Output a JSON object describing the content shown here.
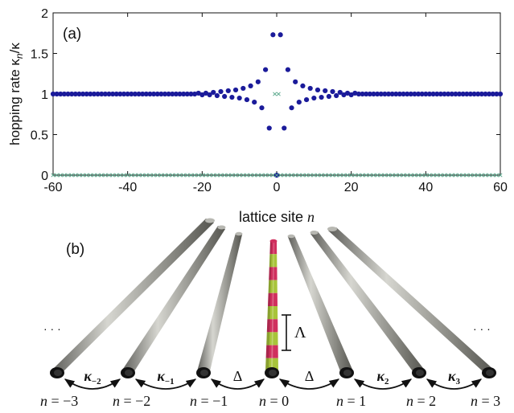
{
  "panel_a": {
    "label": "(a)",
    "chart_data": {
      "type": "scatter",
      "xlabel_text": "lattice site ",
      "xlabel_var": "n",
      "ylabel_main": "hopping rate  κ",
      "ylabel_sub": "n",
      "ylabel_tail": "/κ",
      "xlim": [
        -60,
        60
      ],
      "ylim": [
        0,
        2
      ],
      "x_ticks": [
        "-60",
        "-40",
        "-20",
        "0",
        "20",
        "40",
        "60"
      ],
      "y_ticks": [
        "0",
        "0.5",
        "1",
        "1.5",
        "2"
      ],
      "grid": false,
      "legend": "none",
      "series": [
        {
          "marker": "filled-dot",
          "color": "#1b1b9a",
          "points": [
            [
              -60,
              1.0
            ],
            [
              -59,
              1.0
            ],
            [
              -58,
              1.0
            ],
            [
              -57,
              1.0
            ],
            [
              -56,
              1.0
            ],
            [
              -55,
              1.0
            ],
            [
              -54,
              1.0
            ],
            [
              -53,
              1.0
            ],
            [
              -52,
              1.0
            ],
            [
              -51,
              1.0
            ],
            [
              -50,
              1.0
            ],
            [
              -49,
              1.0
            ],
            [
              -48,
              1.0
            ],
            [
              -47,
              1.0
            ],
            [
              -46,
              1.0
            ],
            [
              -45,
              1.0
            ],
            [
              -44,
              1.0
            ],
            [
              -43,
              1.0
            ],
            [
              -42,
              1.0
            ],
            [
              -41,
              1.0
            ],
            [
              -40,
              1.0
            ],
            [
              -39,
              1.0
            ],
            [
              -38,
              1.0
            ],
            [
              -37,
              1.0
            ],
            [
              -36,
              1.0
            ],
            [
              -35,
              1.0
            ],
            [
              -34,
              1.0
            ],
            [
              -33,
              1.0
            ],
            [
              -32,
              1.0
            ],
            [
              -31,
              1.0
            ],
            [
              -30,
              1.0
            ],
            [
              -29,
              1.0
            ],
            [
              -28,
              1.0
            ],
            [
              -27,
              1.0
            ],
            [
              -26,
              1.0
            ],
            [
              -25,
              1.0
            ],
            [
              -24,
              1.0
            ],
            [
              -23,
              1.0
            ],
            [
              -22,
              1.0
            ],
            [
              -21,
              1.01
            ],
            [
              -20,
              0.99
            ],
            [
              -19,
              1.01
            ],
            [
              -18,
              0.99
            ],
            [
              -17,
              1.02
            ],
            [
              -16,
              0.98
            ],
            [
              -15,
              1.03
            ],
            [
              -14,
              0.97
            ],
            [
              -13,
              1.04
            ],
            [
              -12,
              0.96
            ],
            [
              -11,
              1.05
            ],
            [
              -10,
              0.95
            ],
            [
              -9,
              1.07
            ],
            [
              -8,
              0.93
            ],
            [
              -7,
              1.1
            ],
            [
              -6,
              0.9
            ],
            [
              -5,
              1.15
            ],
            [
              -4,
              0.83
            ],
            [
              -3,
              1.3
            ],
            [
              -2,
              0.58
            ],
            [
              -1,
              1.73
            ],
            [
              0,
              0.0
            ],
            [
              1,
              1.73
            ],
            [
              2,
              0.58
            ],
            [
              3,
              1.3
            ],
            [
              4,
              0.83
            ],
            [
              5,
              1.15
            ],
            [
              6,
              0.9
            ],
            [
              7,
              1.1
            ],
            [
              8,
              0.93
            ],
            [
              9,
              1.07
            ],
            [
              10,
              0.95
            ],
            [
              11,
              1.05
            ],
            [
              12,
              0.96
            ],
            [
              13,
              1.04
            ],
            [
              14,
              0.97
            ],
            [
              15,
              1.03
            ],
            [
              16,
              0.98
            ],
            [
              17,
              1.02
            ],
            [
              18,
              0.99
            ],
            [
              19,
              1.01
            ],
            [
              20,
              0.99
            ],
            [
              21,
              1.01
            ],
            [
              22,
              1.0
            ],
            [
              23,
              1.0
            ],
            [
              24,
              1.0
            ],
            [
              25,
              1.0
            ],
            [
              26,
              1.0
            ],
            [
              27,
              1.0
            ],
            [
              28,
              1.0
            ],
            [
              29,
              1.0
            ],
            [
              30,
              1.0
            ],
            [
              31,
              1.0
            ],
            [
              32,
              1.0
            ],
            [
              33,
              1.0
            ],
            [
              34,
              1.0
            ],
            [
              35,
              1.0
            ],
            [
              36,
              1.0
            ],
            [
              37,
              1.0
            ],
            [
              38,
              1.0
            ],
            [
              39,
              1.0
            ],
            [
              40,
              1.0
            ],
            [
              41,
              1.0
            ],
            [
              42,
              1.0
            ],
            [
              43,
              1.0
            ],
            [
              44,
              1.0
            ],
            [
              45,
              1.0
            ],
            [
              46,
              1.0
            ],
            [
              47,
              1.0
            ],
            [
              48,
              1.0
            ],
            [
              49,
              1.0
            ],
            [
              50,
              1.0
            ],
            [
              51,
              1.0
            ],
            [
              52,
              1.0
            ],
            [
              53,
              1.0
            ],
            [
              54,
              1.0
            ],
            [
              55,
              1.0
            ],
            [
              56,
              1.0
            ],
            [
              57,
              1.0
            ],
            [
              58,
              1.0
            ],
            [
              59,
              1.0
            ],
            [
              60,
              1.0
            ]
          ]
        },
        {
          "marker": "open-x",
          "color": "#5aa88c",
          "points_at_zero_from": -60,
          "points_at_zero_to": 60,
          "extra_points": [
            [
              -0.5,
              1.0
            ],
            [
              0.5,
              1.0
            ]
          ]
        }
      ]
    }
  },
  "panel_b": {
    "label": "(b)",
    "ellipsis_left": "· · ·",
    "ellipsis_right": "· · ·",
    "period_symbol": "Λ",
    "stripe_colors": [
      "#d0305e",
      "#a8c43a"
    ],
    "rod_color": "#9a9a94",
    "arrow_color": "#111111",
    "couplings": [
      {
        "base": "κ",
        "sub": "−2"
      },
      {
        "base": "κ",
        "sub": "−1"
      },
      {
        "base": "Δ",
        "sub": ""
      },
      {
        "base": "Δ",
        "sub": ""
      },
      {
        "base": "κ",
        "sub": "2"
      },
      {
        "base": "κ",
        "sub": "3"
      }
    ],
    "site_labels": [
      {
        "lhs": "n",
        "rhs": " = −3"
      },
      {
        "lhs": "n",
        "rhs": " = −2"
      },
      {
        "lhs": "n",
        "rhs": " = −1"
      },
      {
        "lhs": "n",
        "rhs": " = 0"
      },
      {
        "lhs": "n",
        "rhs": " = 1"
      },
      {
        "lhs": "n",
        "rhs": " = 2"
      },
      {
        "lhs": "n",
        "rhs": " = 3"
      }
    ]
  }
}
